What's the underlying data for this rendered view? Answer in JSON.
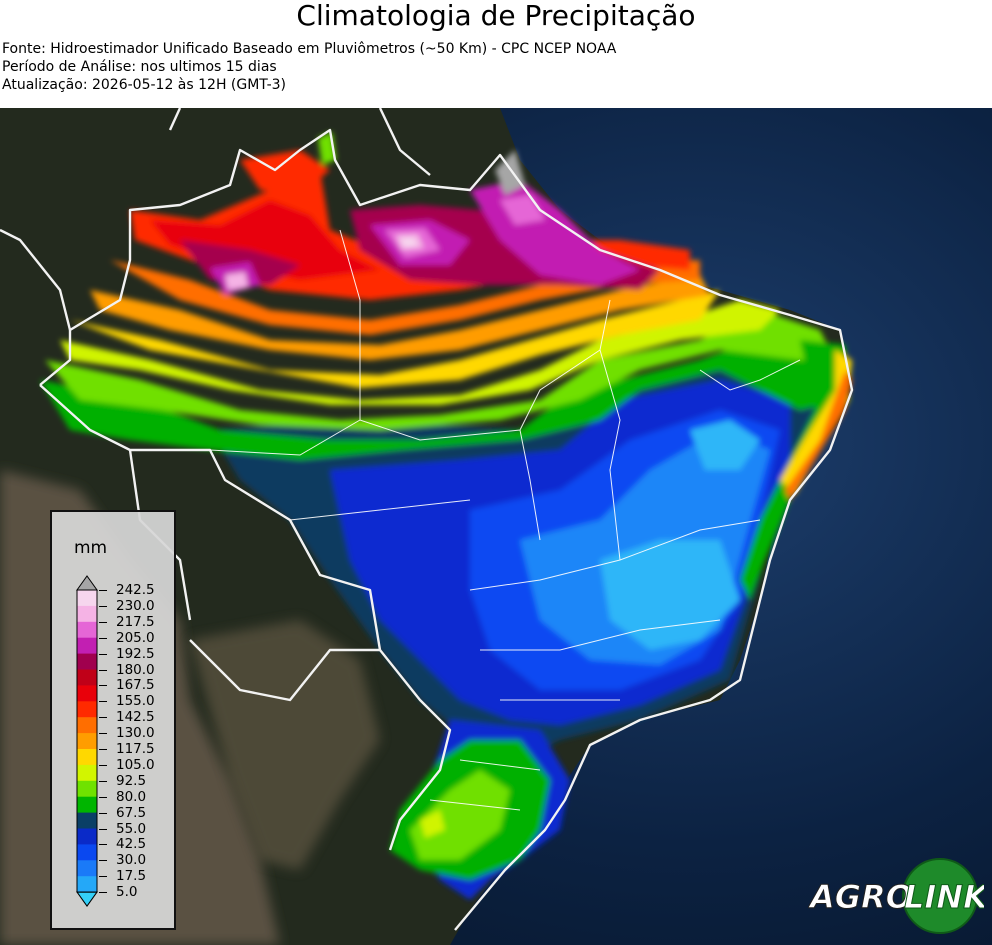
{
  "header": {
    "title": "Climatologia de Precipitação",
    "source": "Fonte: Hidroestimador Unificado Baseado em Pluviômetros (~50 Km) - CPC NCEP NOAA",
    "period": "Período de Análise: nos ultimos 15 dias",
    "updated": "Atualização: 2026-05-12 às 12H (GMT-3)"
  },
  "legend": {
    "unit": "mm",
    "ticks": [
      "242.5",
      "230.0",
      "217.5",
      "205.0",
      "192.5",
      "180.0",
      "167.5",
      "155.0",
      "142.5",
      "130.0",
      "117.5",
      "105.0",
      "92.5",
      "80.0",
      "67.5",
      "55.0",
      "42.5",
      "30.0",
      "17.5",
      "5.0"
    ],
    "colors": [
      "#a6a6a6",
      "#f6d6ee",
      "#f5b3e5",
      "#e566d6",
      "#c21fb2",
      "#a0004e",
      "#c00018",
      "#e9000a",
      "#ff2a00",
      "#ff6e00",
      "#ff9d00",
      "#ffd800",
      "#d2f500",
      "#6fe200",
      "#00b500",
      "#0a3f66",
      "#0a2ac8",
      "#0a48f0",
      "#1a7af8",
      "#24a8f8",
      "#34d0f8"
    ]
  },
  "logo": {
    "text_left": "AGRO",
    "text_right": "LINK",
    "colors": {
      "green": "#1e8a2a",
      "white": "#ffffff"
    }
  }
}
